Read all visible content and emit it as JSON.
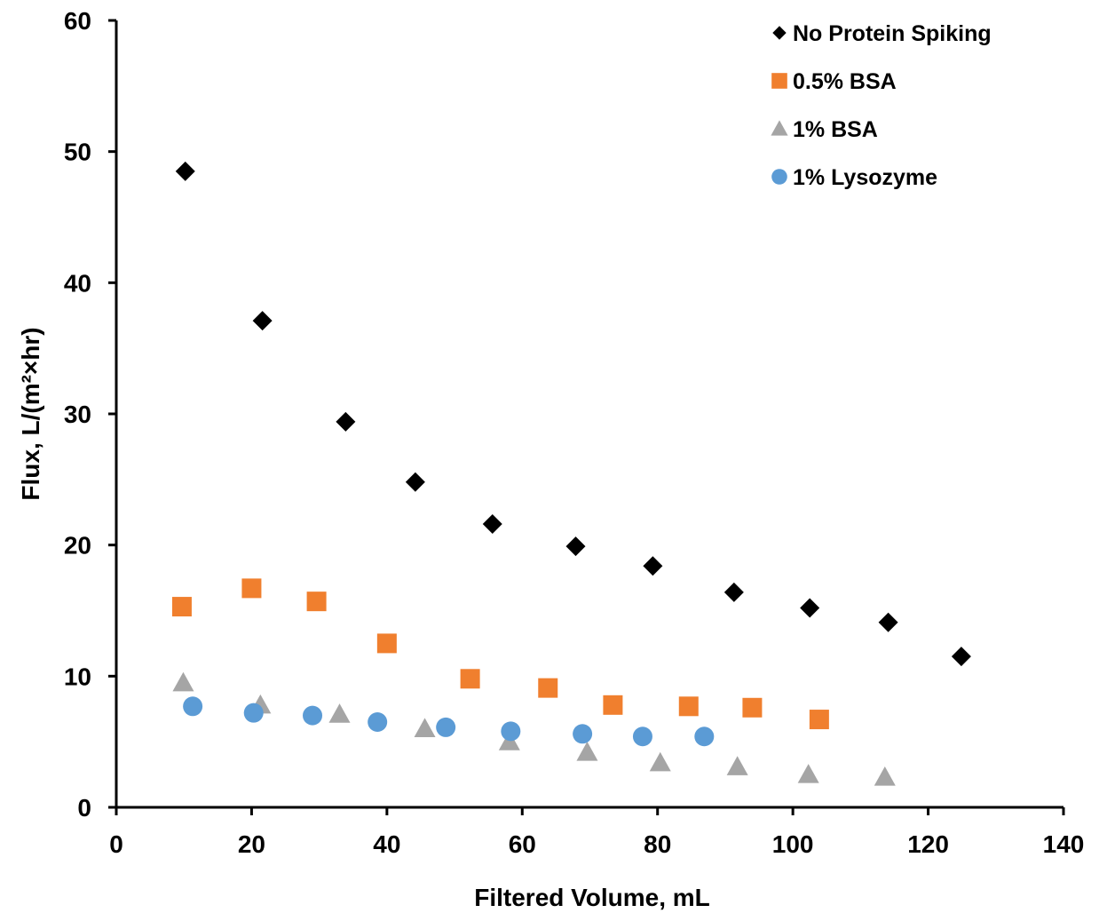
{
  "chart_data": {
    "type": "scatter",
    "title": "",
    "xlabel": "Filtered Volume, mL",
    "ylabel": "Flux, L/(m²×hr)",
    "xlim": [
      0,
      140
    ],
    "ylim": [
      0,
      60
    ],
    "x_ticks": [
      0,
      20,
      40,
      60,
      80,
      100,
      120,
      140
    ],
    "y_ticks": [
      0,
      10,
      20,
      30,
      40,
      50,
      60
    ],
    "grid": false,
    "legend_position": "top-right",
    "series": [
      {
        "name": "No Protein Spiking",
        "marker": "diamond",
        "color": "#000000",
        "x": [
          10.2,
          21.6,
          33.9,
          44.2,
          55.6,
          67.9,
          79.3,
          91.3,
          102.5,
          114.1,
          124.9
        ],
        "y": [
          48.5,
          37.1,
          29.4,
          24.8,
          21.6,
          19.9,
          18.4,
          16.4,
          15.2,
          14.1,
          11.5
        ]
      },
      {
        "name": "0.5% BSA",
        "marker": "square",
        "color": "#F07F2E",
        "x": [
          9.7,
          20.0,
          29.6,
          40.0,
          52.3,
          63.8,
          73.4,
          84.6,
          94.0,
          103.9
        ],
        "y": [
          15.3,
          16.7,
          15.7,
          12.5,
          9.8,
          9.1,
          7.8,
          7.7,
          7.6,
          6.7
        ]
      },
      {
        "name": "1% BSA",
        "marker": "triangle",
        "color": "#A5A5A5",
        "x": [
          9.9,
          21.3,
          33.0,
          45.6,
          58.1,
          69.6,
          80.4,
          91.8,
          102.3,
          113.6
        ],
        "y": [
          9.5,
          7.8,
          7.1,
          6.0,
          5.0,
          4.2,
          3.4,
          3.1,
          2.5,
          2.3
        ]
      },
      {
        "name": "1% Lysozyme",
        "marker": "circle",
        "color": "#5B9BD5",
        "x": [
          11.3,
          20.3,
          29.0,
          38.6,
          48.7,
          58.3,
          68.9,
          77.8,
          86.9
        ],
        "y": [
          7.7,
          7.2,
          7.0,
          6.5,
          6.1,
          5.8,
          5.6,
          5.4,
          5.4
        ]
      }
    ]
  }
}
